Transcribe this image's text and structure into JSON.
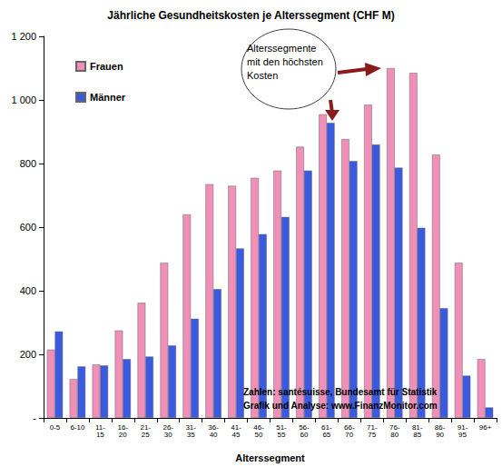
{
  "chart_data": {
    "type": "bar",
    "title": "Jährliche Gesundheitskosten je Alterssegment (CHF M)",
    "x_label": "Alterssegment",
    "categories": [
      "0-5",
      "6-10",
      "11-15",
      "16-20",
      "21-25",
      "26-30",
      "31-35",
      "36-40",
      "41-45",
      "46-50",
      "51-55",
      "56-60",
      "61-65",
      "66-70",
      "71-75",
      "76-80",
      "81-85",
      "86-90",
      "91-95",
      "96+"
    ],
    "series": [
      {
        "name": "Frauen",
        "color": "#f090b8",
        "values": [
          215,
          122,
          168,
          275,
          362,
          488,
          640,
          735,
          730,
          755,
          778,
          853,
          955,
          877,
          985,
          1100,
          1085,
          828,
          488,
          185
        ]
      },
      {
        "name": "Männer",
        "color": "#3a5ae0",
        "values": [
          272,
          162,
          165,
          185,
          193,
          228,
          312,
          405,
          533,
          578,
          632,
          778,
          928,
          808,
          860,
          787,
          598,
          345,
          133,
          33
        ]
      }
    ],
    "ylim": [
      0,
      1200
    ],
    "yticks": [
      {
        "value": 0,
        "label": "-"
      },
      200,
      400,
      600,
      800,
      {
        "value": 1000,
        "label": "1 000"
      },
      {
        "value": 1200,
        "label": "1 200"
      }
    ],
    "grid": false,
    "legend": "top-left",
    "annotations": [
      "Alterssegmente mit den höchsten Kosten",
      "Zahlen: santésuisse, Bundesamt für Statistik",
      "Grafik und Analyse: www.FinanzMonitor.com"
    ]
  }
}
